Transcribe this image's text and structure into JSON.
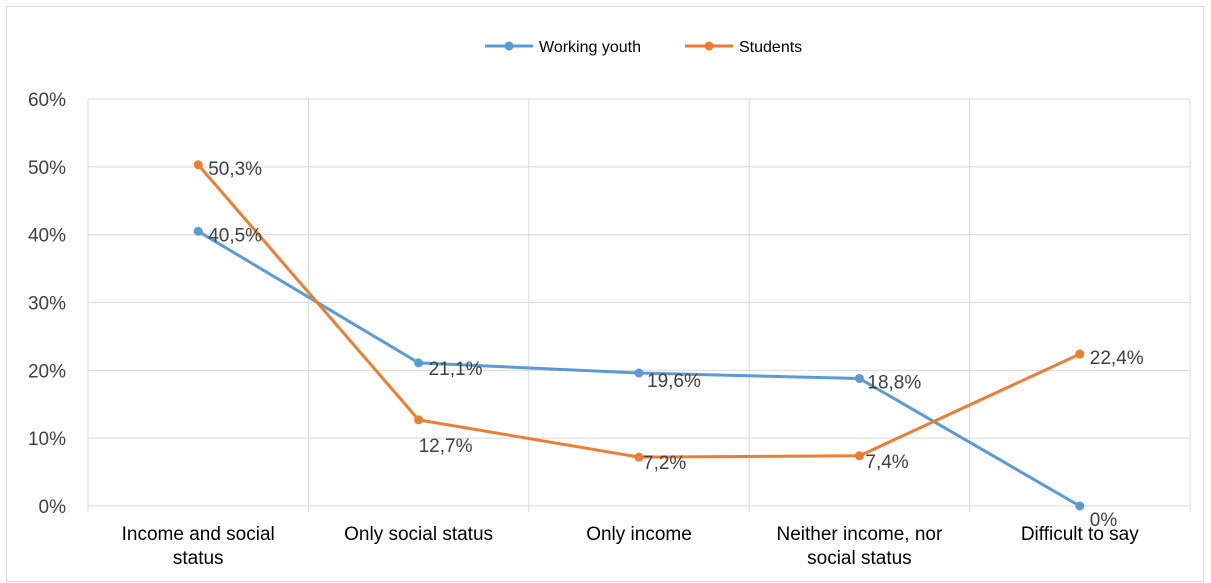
{
  "chart_data": {
    "type": "line",
    "categories": [
      [
        "Income and social",
        "status"
      ],
      [
        "Only social status"
      ],
      [
        "Only income"
      ],
      [
        "Neither income, nor",
        "social status"
      ],
      [
        "Difficult to say"
      ]
    ],
    "series": [
      {
        "name": "Working youth",
        "color": "#5b9bd5",
        "values": [
          40.5,
          21.1,
          19.6,
          18.8,
          0
        ],
        "labels": [
          "40,5%",
          "21,1%",
          "19,6%",
          "18,8%",
          "0%"
        ]
      },
      {
        "name": "Students",
        "color": "#ed7d31",
        "values": [
          50.3,
          12.7,
          7.2,
          7.4,
          22.4
        ],
        "labels": [
          "50,3%",
          "12,7%",
          "7,2%",
          "7,4%",
          "22,4%"
        ]
      }
    ],
    "ylim": [
      0,
      60
    ],
    "yticks": [
      0,
      10,
      20,
      30,
      40,
      50,
      60
    ],
    "ytick_labels": [
      "0%",
      "10%",
      "20%",
      "30%",
      "40%",
      "50%",
      "60%"
    ],
    "grid": true,
    "legend": "top-center",
    "title": "",
    "xlabel": "",
    "ylabel": ""
  }
}
